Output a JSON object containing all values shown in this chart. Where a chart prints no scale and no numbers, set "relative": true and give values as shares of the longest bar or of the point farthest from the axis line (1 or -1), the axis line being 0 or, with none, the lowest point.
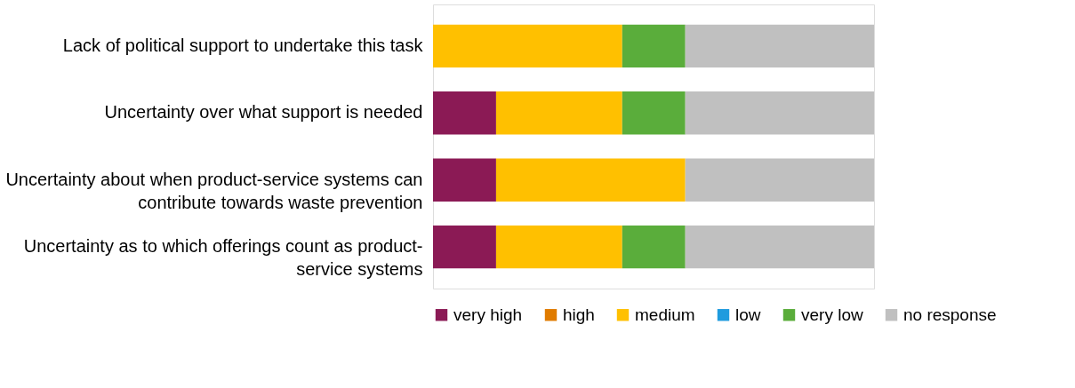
{
  "chart_data": {
    "type": "bar",
    "orientation": "horizontal",
    "stacked": true,
    "relative": true,
    "legend": "bottom",
    "categories": [
      "Lack of political support to undertake this task",
      "Uncertainty over what support is needed",
      "Uncertainty about when product-service systems can contribute towards waste prevention",
      "Uncertainty as to which offerings count as product-service systems"
    ],
    "series": [
      {
        "name": "very high",
        "color": "#8b1a55",
        "values": [
          0,
          0.143,
          0.143,
          0.143
        ]
      },
      {
        "name": "high",
        "color": "#e07b00",
        "values": [
          0,
          0,
          0,
          0
        ]
      },
      {
        "name": "medium",
        "color": "#ffc000",
        "values": [
          0.429,
          0.286,
          0.429,
          0.286
        ]
      },
      {
        "name": "low",
        "color": "#1f9bde",
        "values": [
          0,
          0,
          0,
          0
        ]
      },
      {
        "name": "very low",
        "color": "#5aad3b",
        "values": [
          0.143,
          0.143,
          0,
          0.143
        ]
      },
      {
        "name": "no response",
        "color": "#c0c0c0",
        "values": [
          0.428,
          0.428,
          0.428,
          0.428
        ]
      }
    ]
  }
}
